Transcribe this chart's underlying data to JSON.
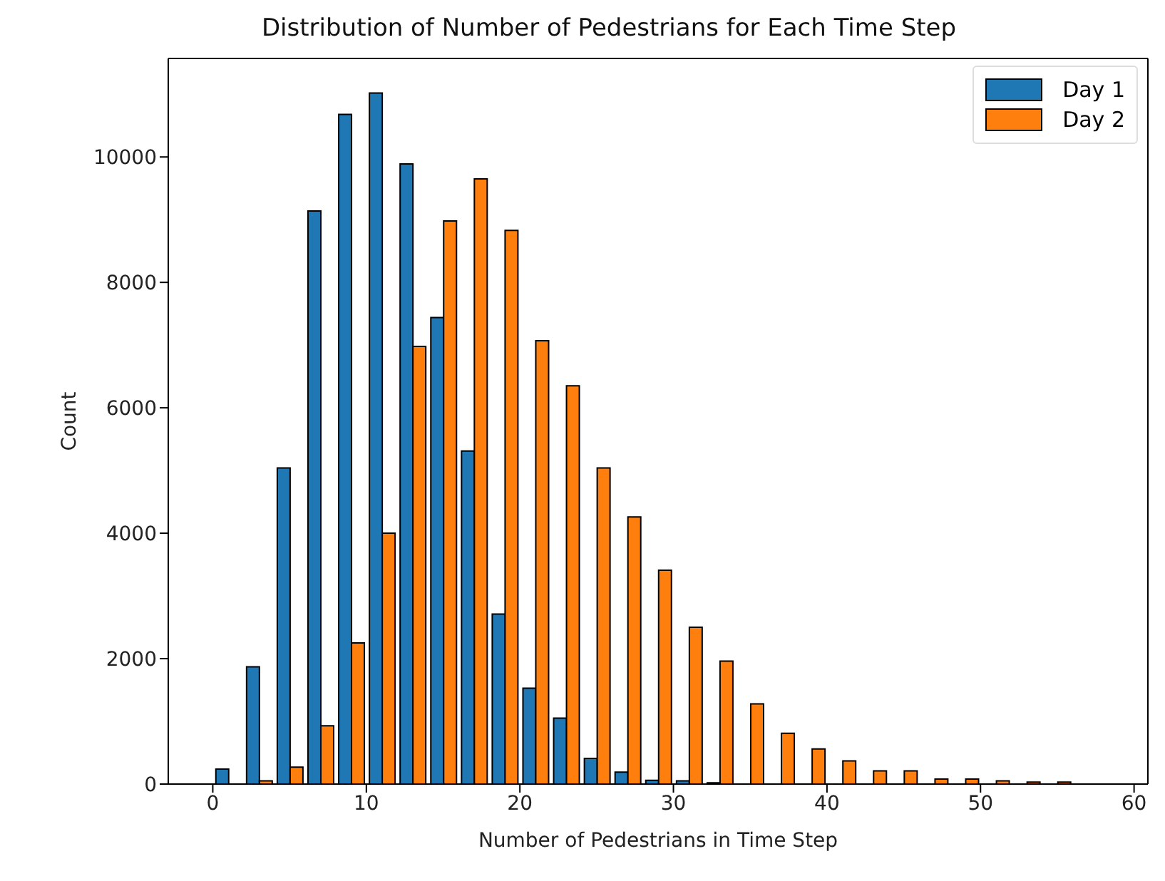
{
  "chart_data": {
    "type": "histogram",
    "title": "Distribution of Number of Pedestrians for Each Time Step",
    "xlabel": "Number of Pedestrians in Time Step",
    "ylabel": "Count",
    "bins": [
      0,
      2,
      4,
      6,
      8,
      10,
      12,
      14,
      16,
      18,
      20,
      22,
      24,
      26,
      28,
      30,
      32,
      34,
      36,
      38,
      40,
      42,
      44,
      46,
      48,
      50,
      52,
      54,
      56,
      58
    ],
    "series": [
      {
        "name": "Day 1",
        "color": "#1f77b4",
        "values": [
          240,
          1870,
          5040,
          9140,
          10680,
          11020,
          9890,
          7440,
          5310,
          2710,
          1530,
          1050,
          410,
          190,
          60,
          50,
          20,
          0,
          0,
          0,
          0,
          0,
          0,
          0,
          0,
          0,
          0,
          0,
          0
        ]
      },
      {
        "name": "Day 2",
        "color": "#ff7f0e",
        "values": [
          0,
          50,
          270,
          930,
          2250,
          4000,
          6980,
          8980,
          9650,
          8830,
          7070,
          6350,
          5040,
          4260,
          3410,
          2500,
          1960,
          1280,
          810,
          560,
          370,
          210,
          210,
          80,
          80,
          50,
          30,
          30,
          null
        ]
      }
    ],
    "xlim": [
      -2.9,
      60.9
    ],
    "xticks": [
      0,
      10,
      20,
      30,
      40,
      50,
      60
    ],
    "ylim": [
      0,
      11571
    ],
    "yticks": [
      0,
      2000,
      4000,
      6000,
      8000,
      10000
    ],
    "legend": "top right",
    "grid": false
  }
}
